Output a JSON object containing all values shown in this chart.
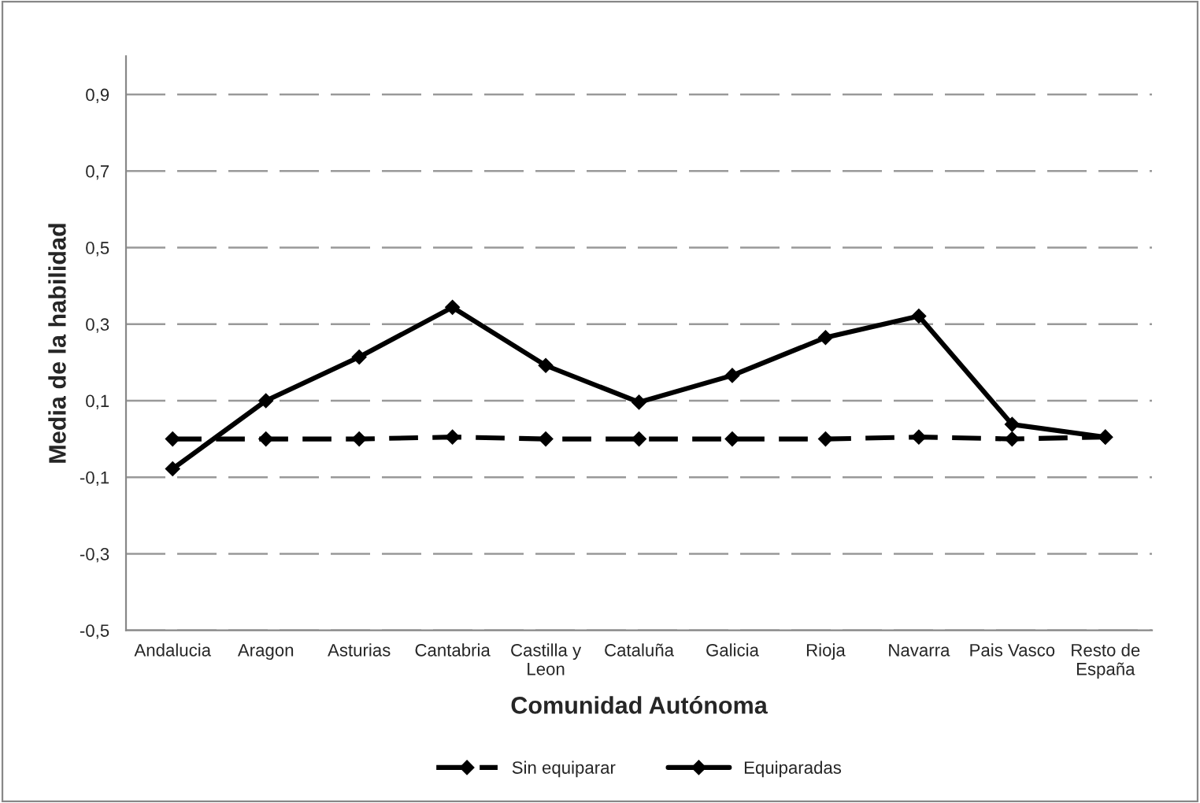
{
  "chart_data": {
    "type": "line",
    "xlabel": "Comunidad Autónoma",
    "ylabel": "Media de la habilidad",
    "categories": [
      "Andalucia",
      "Aragon",
      "Asturias",
      "Cantabria",
      "Castilla y\nLeon",
      "Cataluña",
      "Galicia",
      "Rioja",
      "Navarra",
      "Pais Vasco",
      "Resto de\nEspaña"
    ],
    "series": [
      {
        "name": "Sin equiparar",
        "color": "#000000",
        "line_style": "dashed",
        "values": [
          0,
          0,
          0,
          0.005,
          0,
          0,
          0,
          0,
          0.005,
          0,
          0.005
        ]
      },
      {
        "name": "Equiparadas",
        "color": "#000000",
        "line_style": "solid",
        "values": [
          -0.078,
          0.1,
          0.214,
          0.344,
          0.192,
          0.096,
          0.166,
          0.265,
          0.321,
          0.038,
          0.005
        ]
      }
    ],
    "ylim": [
      -0.5,
      1.0
    ],
    "yticks": [
      {
        "value": -0.5,
        "label": "-0,5"
      },
      {
        "value": -0.3,
        "label": "-0,3"
      },
      {
        "value": -0.1,
        "label": "-0,1"
      },
      {
        "value": 0.1,
        "label": "0,1"
      },
      {
        "value": 0.3,
        "label": "0,3"
      },
      {
        "value": 0.5,
        "label": "0,5"
      },
      {
        "value": 0.7,
        "label": "0,7"
      },
      {
        "value": 0.9,
        "label": "0,9"
      }
    ],
    "grid": "y",
    "legend": "bottom",
    "marker": "diamond"
  }
}
